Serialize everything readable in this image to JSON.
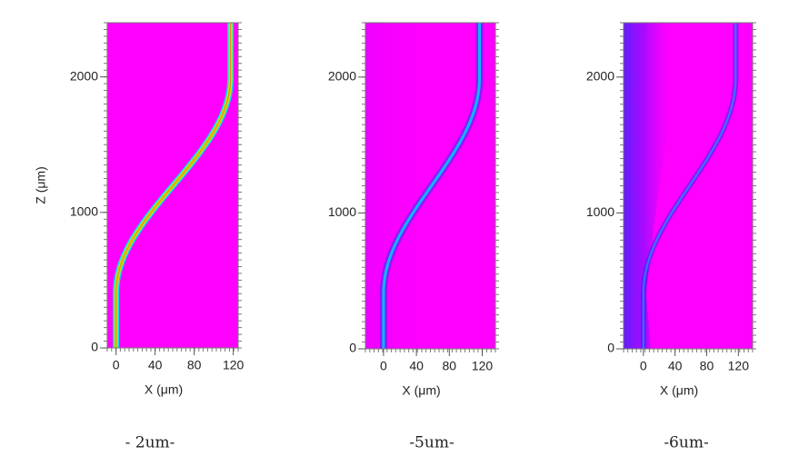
{
  "chart_data": [
    {
      "type": "heatmap",
      "xlabel": "X (μm)",
      "ylabel": "Z (μm)",
      "caption": "- 2um-",
      "xlim": [
        -9,
        125
      ],
      "ylim": [
        0,
        2400
      ],
      "xticks": [
        0,
        40,
        80,
        120
      ],
      "yticks": [
        0,
        1000,
        2000
      ],
      "color": "#ff00ff"
    },
    {
      "type": "heatmap",
      "xlabel": "X (μm)",
      "caption": "-5um-",
      "xlim": [
        -22,
        136
      ],
      "ylim": [
        0,
        2400
      ],
      "xticks": [
        0,
        40,
        80,
        120
      ],
      "yticks": [
        0,
        1000,
        2000
      ],
      "color": "#ff00ff"
    },
    {
      "type": "heatmap",
      "xlabel": "X (μm)",
      "caption": "-6um-",
      "xlim": [
        -25,
        138
      ],
      "ylim": [
        0,
        2400
      ],
      "xticks": [
        0,
        40,
        80,
        120
      ],
      "yticks": [
        0,
        1000,
        2000
      ],
      "color": "#ff00ff"
    }
  ]
}
